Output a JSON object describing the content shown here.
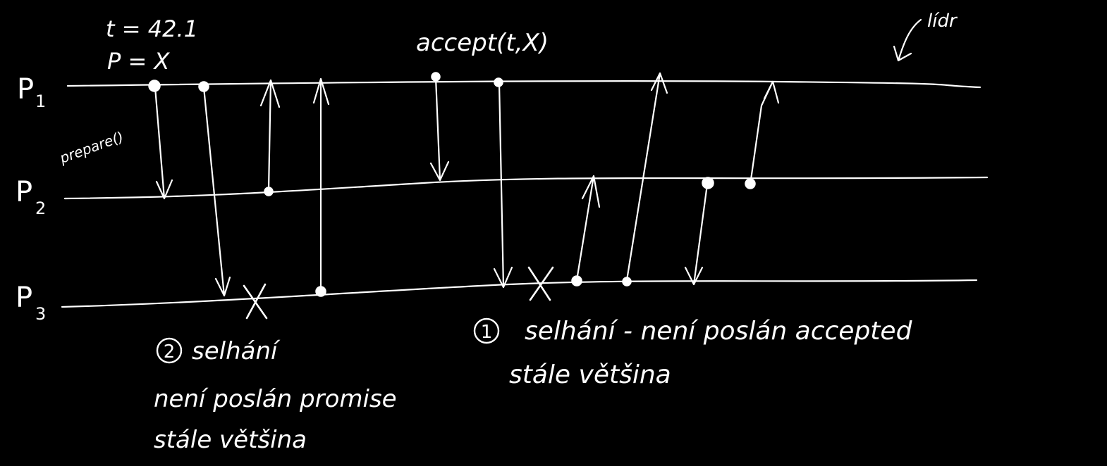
{
  "processes": [
    {
      "name": "P",
      "sub": "1"
    },
    {
      "name": "P",
      "sub": "2"
    },
    {
      "name": "P",
      "sub": "3"
    }
  ],
  "proposal": {
    "line1": "t = 42.1",
    "line2": "P = X"
  },
  "labels": {
    "prepare": "prepare()",
    "accept": "accept(t,X)",
    "leader": "lídr"
  },
  "notes": {
    "failure2": {
      "num": "2",
      "line1": "selhání",
      "line2": "není poslán promise",
      "line3": "stále většina"
    },
    "failure1": {
      "num": "1",
      "line1": "selhání - není poslán accepted",
      "line2": "stále většina"
    }
  },
  "colors": {
    "background": "#000000",
    "ink": "#ffffff"
  }
}
